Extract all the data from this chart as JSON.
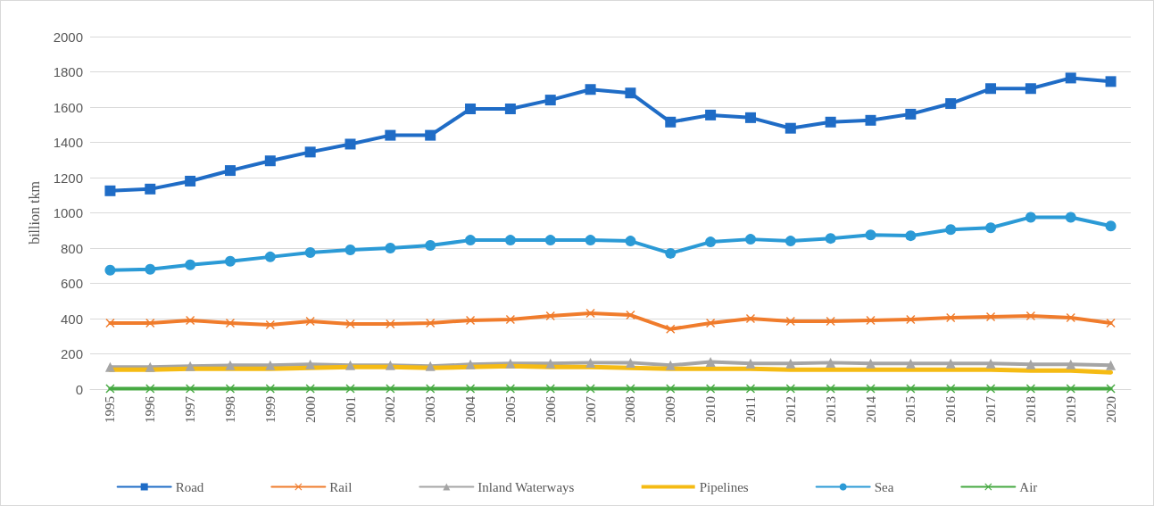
{
  "chart_data": {
    "type": "line",
    "ylabel": "billion tkm",
    "categories": [
      "1995",
      "1996",
      "1997",
      "1998",
      "1999",
      "2000",
      "2001",
      "2002",
      "2003",
      "2004",
      "2005",
      "2006",
      "2007",
      "2008",
      "2009",
      "2010",
      "2011",
      "2012",
      "2013",
      "2014",
      "2015",
      "2016",
      "2017",
      "2018",
      "2019",
      "2020"
    ],
    "series": [
      {
        "name": "Road",
        "color": "#1f6cc6",
        "marker": "square",
        "values": [
          1125,
          1135,
          1180,
          1240,
          1295,
          1345,
          1390,
          1440,
          1440,
          1590,
          1590,
          1640,
          1700,
          1680,
          1515,
          1555,
          1540,
          1480,
          1515,
          1525,
          1560,
          1620,
          1705,
          1705,
          1765,
          1745
        ]
      },
      {
        "name": "Rail",
        "color": "#f07c2c",
        "marker": "cross",
        "values": [
          375,
          375,
          390,
          375,
          365,
          385,
          370,
          370,
          375,
          390,
          395,
          415,
          430,
          420,
          340,
          375,
          400,
          385,
          385,
          390,
          395,
          405,
          410,
          415,
          405,
          375
        ]
      },
      {
        "name": "Inland Waterways",
        "color": "#a5a5a5",
        "marker": "triangle",
        "values": [
          125,
          125,
          130,
          135,
          135,
          140,
          135,
          135,
          130,
          140,
          145,
          145,
          150,
          150,
          135,
          155,
          145,
          145,
          150,
          145,
          145,
          145,
          145,
          140,
          140,
          135
        ]
      },
      {
        "name": "Pipelines",
        "color": "#f5bb14",
        "marker": "none",
        "values": [
          110,
          110,
          115,
          115,
          115,
          120,
          125,
          125,
          120,
          125,
          130,
          125,
          125,
          120,
          115,
          115,
          115,
          110,
          110,
          110,
          110,
          110,
          110,
          105,
          105,
          95
        ]
      },
      {
        "name": "Sea",
        "color": "#2b9ad6",
        "marker": "circle",
        "values": [
          675,
          680,
          705,
          725,
          750,
          775,
          790,
          800,
          815,
          845,
          845,
          845,
          845,
          840,
          770,
          835,
          850,
          840,
          855,
          875,
          870,
          905,
          915,
          975,
          975,
          925
        ]
      },
      {
        "name": "Air",
        "color": "#46a942",
        "marker": "cross",
        "values": [
          2,
          2,
          2,
          2,
          2,
          2,
          2,
          2,
          2,
          2,
          2,
          2,
          2,
          2,
          2,
          2,
          2,
          2,
          2,
          2,
          2,
          2,
          2,
          2,
          2,
          2
        ]
      }
    ],
    "ylim": [
      0,
      2000
    ],
    "yticks": [
      0,
      200,
      400,
      600,
      800,
      1000,
      1200,
      1400,
      1600,
      1800,
      2000
    ],
    "grid": "y",
    "legend": "bottom",
    "line_style": "solid"
  }
}
